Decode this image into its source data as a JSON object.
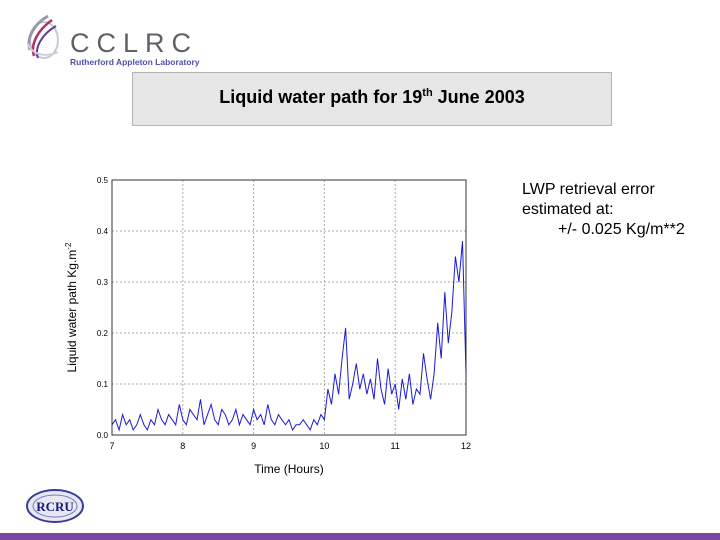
{
  "header": {
    "logo_name": "CCLRC",
    "logo_subtitle": "Rutherford Appleton Laboratory"
  },
  "title": {
    "prefix": "Liquid water path for 19",
    "superscript": "th",
    "suffix": " June 2003"
  },
  "note": {
    "line1": "LWP retrieval error",
    "line2": "estimated at:",
    "line3": "+/- 0.025 Kg/m**2"
  },
  "footer_logo": "RCRU",
  "colors": {
    "series": "#1a1ad6",
    "bottom_bar": "#7c47a0",
    "title_box": "#e6e6e6"
  },
  "chart_data": {
    "type": "line",
    "xlabel": "Time (Hours)",
    "ylabel": "Liquid water path Kg.m",
    "ylabel_sup": "-2",
    "xlim": [
      7,
      12
    ],
    "ylim": [
      0,
      0.5
    ],
    "xticks": [
      "7",
      "8",
      "9",
      "10",
      "11",
      "12"
    ],
    "yticks": [
      "0.0",
      "0.1",
      "0.2",
      "0.3",
      "0.4",
      "0.5"
    ],
    "grid": true,
    "series": [
      {
        "x": [
          7.0,
          7.05,
          7.1,
          7.15,
          7.2,
          7.25,
          7.3,
          7.35,
          7.4,
          7.45,
          7.5,
          7.55,
          7.6,
          7.65,
          7.7,
          7.75,
          7.8,
          7.85,
          7.9,
          7.95,
          8.0,
          8.05,
          8.1,
          8.15,
          8.2,
          8.25,
          8.3,
          8.35,
          8.4,
          8.45,
          8.5,
          8.55,
          8.6,
          8.65,
          8.7,
          8.75,
          8.8,
          8.85,
          8.9,
          8.95,
          9.0,
          9.05,
          9.1,
          9.15,
          9.2,
          9.25,
          9.3,
          9.35,
          9.4,
          9.45,
          9.5,
          9.55,
          9.6,
          9.65,
          9.7,
          9.75,
          9.8,
          9.85,
          9.9,
          9.95,
          10.0,
          10.05,
          10.1,
          10.15,
          10.2,
          10.25,
          10.3,
          10.35,
          10.4,
          10.45,
          10.5,
          10.55,
          10.6,
          10.65,
          10.7,
          10.75,
          10.8,
          10.85,
          10.9,
          10.95,
          11.0,
          11.05,
          11.1,
          11.15,
          11.2,
          11.25,
          11.3,
          11.35,
          11.4,
          11.45,
          11.5,
          11.55,
          11.6,
          11.65,
          11.7,
          11.75,
          11.8,
          11.85,
          11.9,
          11.95,
          12.0
        ],
        "y": [
          0.02,
          0.03,
          0.01,
          0.04,
          0.02,
          0.03,
          0.01,
          0.02,
          0.04,
          0.02,
          0.01,
          0.03,
          0.02,
          0.05,
          0.03,
          0.02,
          0.04,
          0.03,
          0.02,
          0.06,
          0.03,
          0.02,
          0.05,
          0.04,
          0.03,
          0.07,
          0.02,
          0.04,
          0.06,
          0.03,
          0.02,
          0.05,
          0.04,
          0.02,
          0.03,
          0.05,
          0.02,
          0.04,
          0.03,
          0.02,
          0.05,
          0.03,
          0.04,
          0.02,
          0.06,
          0.03,
          0.02,
          0.04,
          0.03,
          0.02,
          0.03,
          0.01,
          0.02,
          0.02,
          0.03,
          0.02,
          0.01,
          0.03,
          0.02,
          0.04,
          0.03,
          0.09,
          0.06,
          0.12,
          0.08,
          0.15,
          0.21,
          0.07,
          0.1,
          0.14,
          0.09,
          0.12,
          0.08,
          0.11,
          0.07,
          0.15,
          0.09,
          0.06,
          0.13,
          0.08,
          0.1,
          0.05,
          0.11,
          0.07,
          0.12,
          0.06,
          0.09,
          0.08,
          0.16,
          0.11,
          0.07,
          0.12,
          0.22,
          0.15,
          0.28,
          0.18,
          0.24,
          0.35,
          0.3,
          0.38,
          0.12
        ]
      }
    ]
  }
}
